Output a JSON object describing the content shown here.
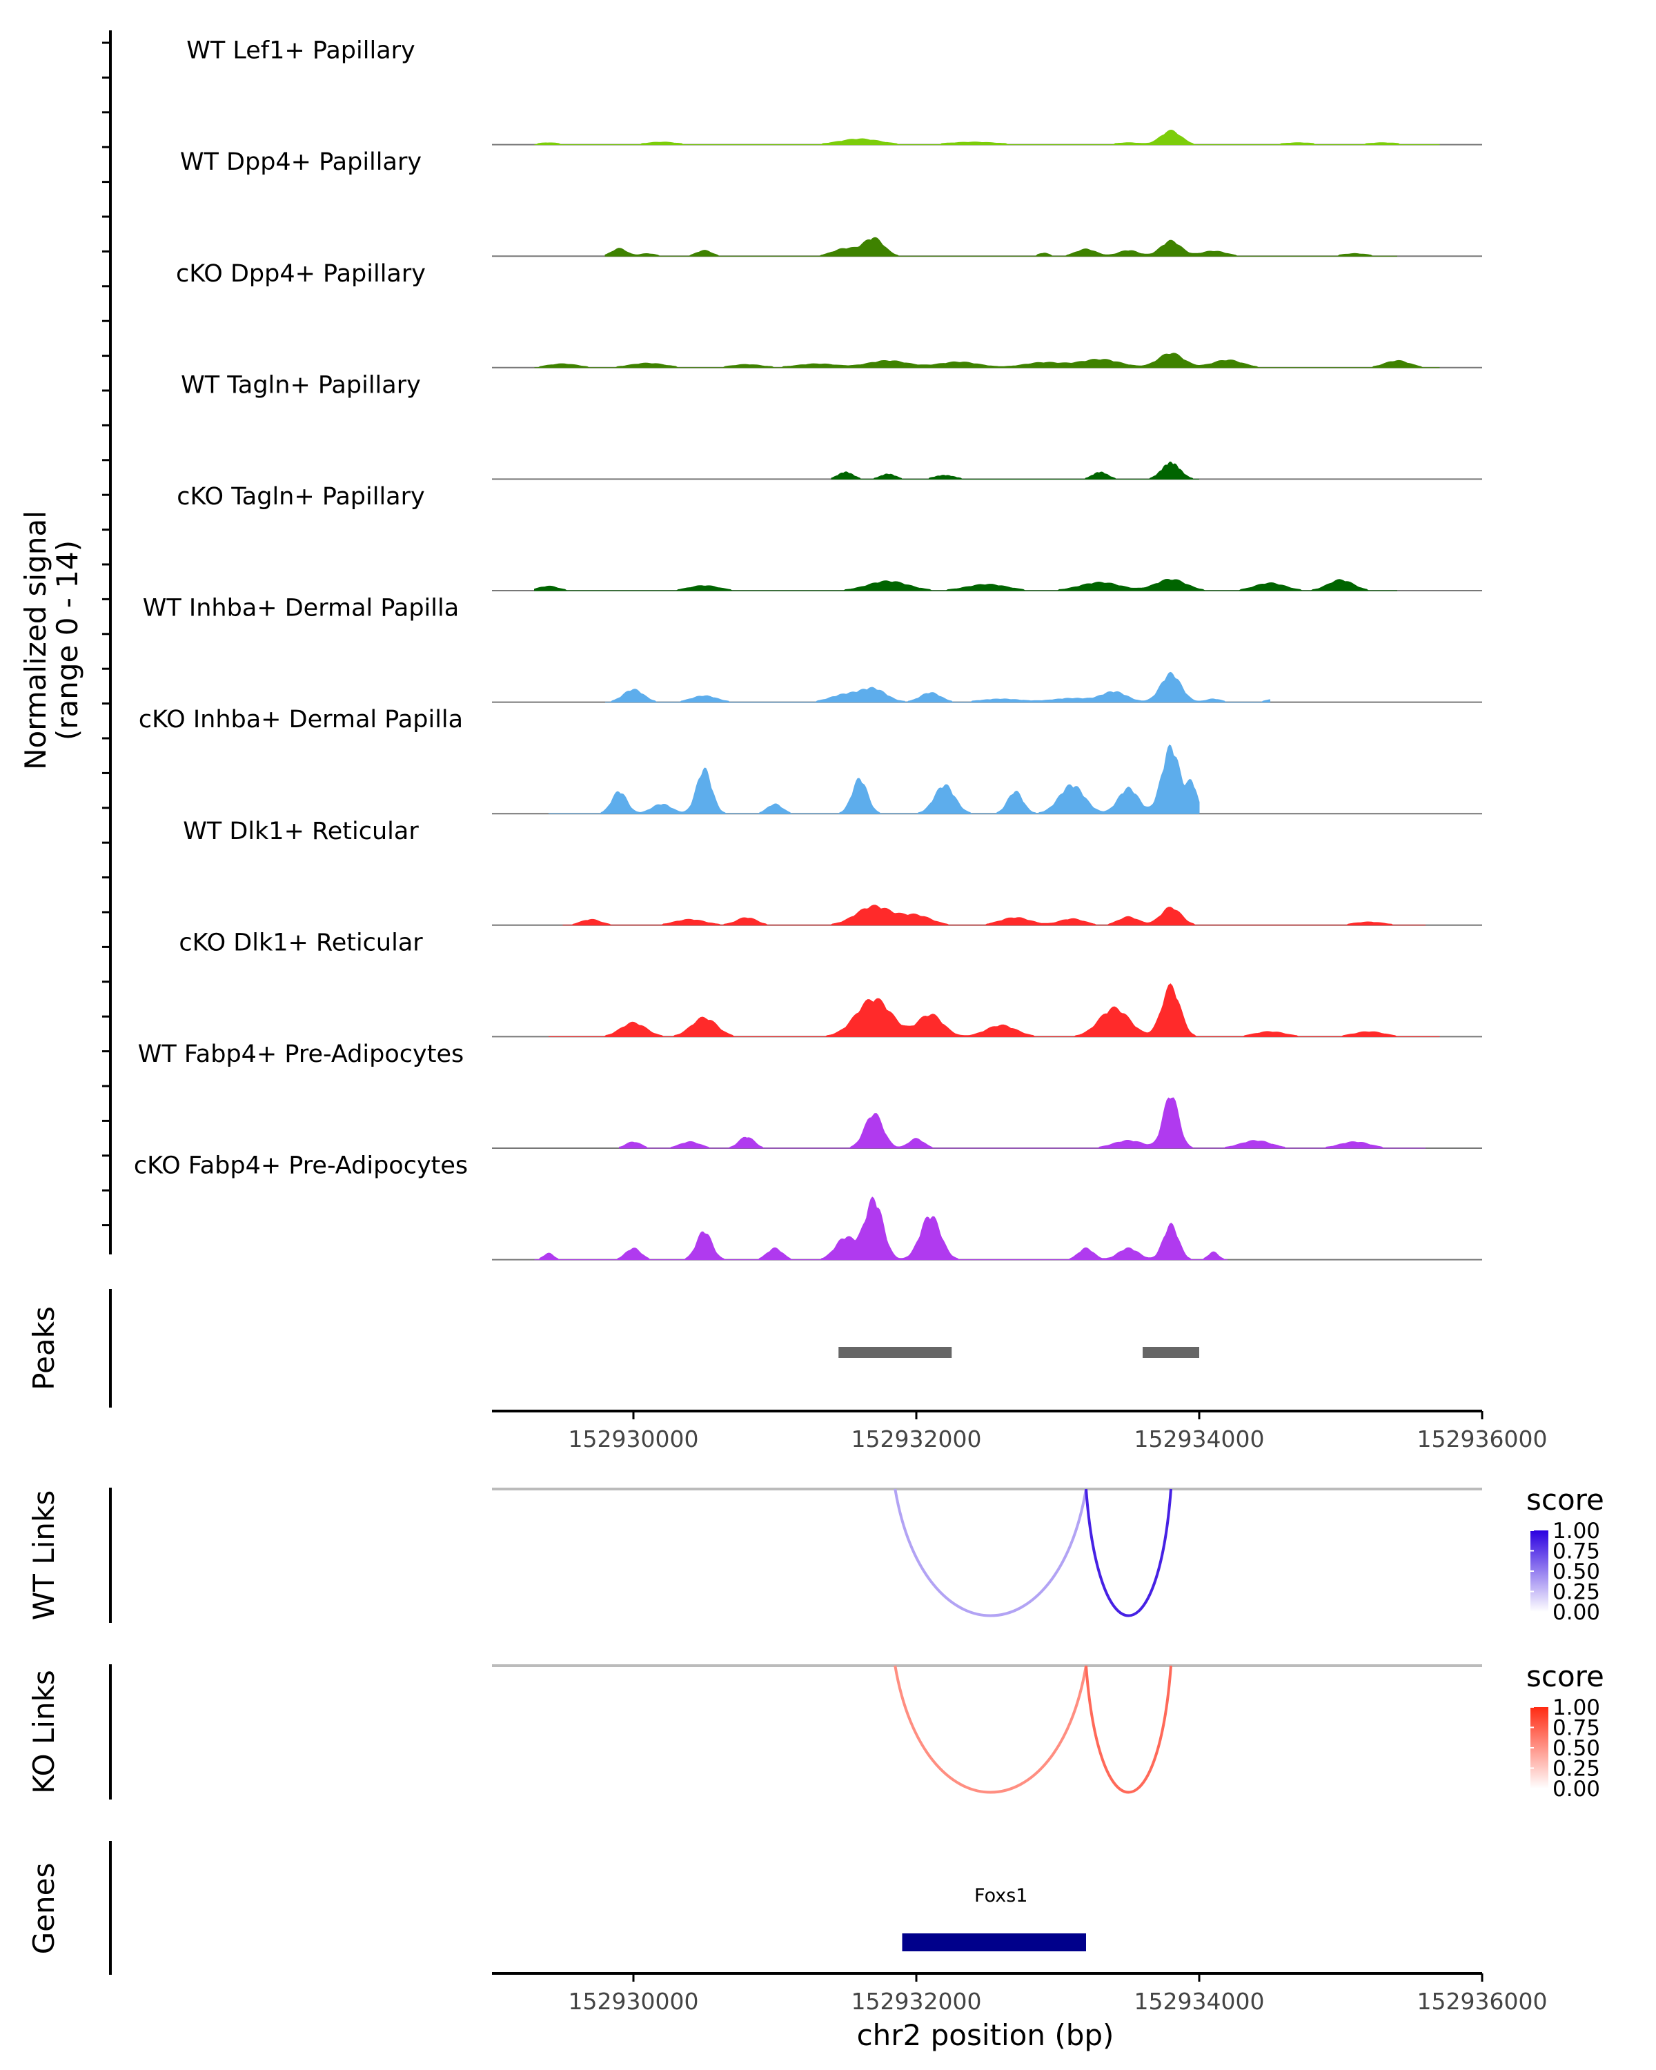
{
  "chart_data": {
    "type": "area",
    "chromosome": "chr2",
    "x_range": [
      152929000,
      152936000
    ],
    "y_axis_label_line1": "Normalized signal",
    "y_axis_label_line2": "(range 0 - 14)",
    "y_range": [
      0,
      14
    ],
    "x_ticks": [
      152930000,
      152932000,
      152934000,
      152936000
    ],
    "x_tick_labels": [
      "152930000",
      "152932000",
      "152934000",
      "152936000"
    ],
    "x_axis_title": "chr2 position (bp)",
    "tracks": [
      {
        "name": "WT Lef1+ Papillary",
        "color": "#7CCD0A",
        "region": [
          152929300,
          152935700
        ],
        "peaks": [
          [
            152929400,
            0.3,
            200
          ],
          [
            152930200,
            0.4,
            300
          ],
          [
            152931600,
            0.9,
            400
          ],
          [
            152932400,
            0.4,
            500
          ],
          [
            152933500,
            0.3,
            250
          ],
          [
            152933800,
            2.2,
            200
          ],
          [
            152934700,
            0.3,
            300
          ],
          [
            152935300,
            0.3,
            300
          ]
        ]
      },
      {
        "name": "WT Dpp4+ Papillary",
        "color": "#3E8200",
        "region": [
          152929800,
          152935400
        ],
        "peaks": [
          [
            152929900,
            1.2,
            150
          ],
          [
            152930100,
            0.4,
            150
          ],
          [
            152930500,
            0.9,
            150
          ],
          [
            152931500,
            1.2,
            250
          ],
          [
            152931700,
            2.8,
            200
          ],
          [
            152932900,
            0.5,
            100
          ],
          [
            152933200,
            1.1,
            200
          ],
          [
            152933500,
            0.9,
            200
          ],
          [
            152933800,
            2.4,
            200
          ],
          [
            152934100,
            0.8,
            250
          ],
          [
            152935100,
            0.4,
            250
          ]
        ]
      },
      {
        "name": "cKO Dpp4+ Papillary",
        "color": "#3E8200",
        "region": [
          152929300,
          152935700
        ],
        "peaks": [
          [
            152929500,
            0.6,
            300
          ],
          [
            152930100,
            0.7,
            350
          ],
          [
            152930800,
            0.5,
            300
          ],
          [
            152931300,
            0.6,
            400
          ],
          [
            152931800,
            1.1,
            400
          ],
          [
            152932300,
            0.9,
            400
          ],
          [
            152932900,
            0.8,
            400
          ],
          [
            152933300,
            1.3,
            400
          ],
          [
            152933800,
            2.3,
            250
          ],
          [
            152934200,
            1.2,
            300
          ],
          [
            152935400,
            1.1,
            250
          ]
        ]
      },
      {
        "name": "WT Tagln+ Papillary",
        "color": "#006400",
        "region": [
          152931400,
          152934000
        ],
        "peaks": [
          [
            152931500,
            1.1,
            150
          ],
          [
            152931800,
            0.8,
            150
          ],
          [
            152932200,
            0.6,
            200
          ],
          [
            152933300,
            1.1,
            150
          ],
          [
            152933800,
            2.6,
            180
          ]
        ]
      },
      {
        "name": "cKO Tagln+ Papillary",
        "color": "#006400",
        "region": [
          152929300,
          152935400
        ],
        "peaks": [
          [
            152929400,
            0.7,
            200
          ],
          [
            152930500,
            0.8,
            300
          ],
          [
            152931800,
            1.5,
            400
          ],
          [
            152932500,
            1.0,
            400
          ],
          [
            152933300,
            1.3,
            400
          ],
          [
            152933800,
            1.8,
            300
          ],
          [
            152934500,
            1.2,
            300
          ],
          [
            152935000,
            1.7,
            250
          ]
        ]
      },
      {
        "name": "WT Inhba+ Dermal Papilla",
        "color": "#5DADEC",
        "region": [
          152929800,
          152934500
        ],
        "peaks": [
          [
            152930000,
            2.0,
            200
          ],
          [
            152930500,
            1.0,
            250
          ],
          [
            152931500,
            1.2,
            300
          ],
          [
            152931700,
            2.0,
            250
          ],
          [
            152932100,
            1.5,
            200
          ],
          [
            152932600,
            0.5,
            400
          ],
          [
            152933100,
            0.6,
            400
          ],
          [
            152933400,
            1.6,
            250
          ],
          [
            152933800,
            4.5,
            200
          ],
          [
            152934100,
            0.5,
            150
          ],
          [
            152934500,
            0.4,
            100
          ]
        ]
      },
      {
        "name": "cKO Inhba+ Dermal Papilla",
        "color": "#5DADEC",
        "region": [
          152929400,
          152934000
        ],
        "peaks": [
          [
            152929900,
            3.5,
            150
          ],
          [
            152930200,
            1.5,
            200
          ],
          [
            152930500,
            7.0,
            150
          ],
          [
            152931000,
            1.5,
            150
          ],
          [
            152931600,
            5.5,
            150
          ],
          [
            152932200,
            4.5,
            200
          ],
          [
            152932700,
            3.5,
            150
          ],
          [
            152933100,
            4.5,
            250
          ],
          [
            152933500,
            4.0,
            200
          ],
          [
            152933800,
            10.5,
            180
          ],
          [
            152933950,
            4.5,
            100
          ]
        ]
      },
      {
        "name": "WT Dlk1+ Reticular",
        "color": "#FF2A2A",
        "region": [
          152929500,
          152935600
        ],
        "peaks": [
          [
            152929700,
            0.9,
            200
          ],
          [
            152930400,
            0.9,
            300
          ],
          [
            152930800,
            1.2,
            200
          ],
          [
            152931700,
            3.0,
            350
          ],
          [
            152932000,
            1.5,
            300
          ],
          [
            152932700,
            1.2,
            300
          ],
          [
            152933100,
            1.0,
            250
          ],
          [
            152933500,
            1.3,
            200
          ],
          [
            152933800,
            2.8,
            200
          ],
          [
            152935200,
            0.5,
            300
          ]
        ]
      },
      {
        "name": "cKO Dlk1+ Reticular",
        "color": "#FF2A2A",
        "region": [
          152929400,
          152935700
        ],
        "peaks": [
          [
            152930000,
            2.2,
            250
          ],
          [
            152930500,
            3.0,
            250
          ],
          [
            152931700,
            6.0,
            350
          ],
          [
            152932100,
            3.5,
            250
          ],
          [
            152932600,
            1.8,
            300
          ],
          [
            152933400,
            4.5,
            300
          ],
          [
            152933800,
            8.0,
            180
          ],
          [
            152934500,
            0.8,
            300
          ],
          [
            152935200,
            0.8,
            300
          ]
        ]
      },
      {
        "name": "WT Fabp4+ Pre-Adipocytes",
        "color": "#B03AEF",
        "region": [
          152929900,
          152935600
        ],
        "peaks": [
          [
            152930000,
            1.0,
            150
          ],
          [
            152930400,
            1.0,
            200
          ],
          [
            152930800,
            1.8,
            150
          ],
          [
            152931700,
            5.5,
            180
          ],
          [
            152932000,
            1.5,
            150
          ],
          [
            152933500,
            1.2,
            300
          ],
          [
            152933800,
            8.5,
            150
          ],
          [
            152934400,
            1.2,
            300
          ],
          [
            152935100,
            1.0,
            300
          ]
        ]
      },
      {
        "name": "cKO Fabp4+ Pre-Adipocytes",
        "color": "#B03AEF",
        "region": [
          152929300,
          152934200
        ],
        "peaks": [
          [
            152929400,
            1.0,
            100
          ],
          [
            152930000,
            1.8,
            150
          ],
          [
            152930500,
            4.5,
            150
          ],
          [
            152931000,
            1.8,
            150
          ],
          [
            152931500,
            3.5,
            200
          ],
          [
            152931700,
            9.5,
            180
          ],
          [
            152932100,
            7.0,
            200
          ],
          [
            152933200,
            1.8,
            150
          ],
          [
            152933500,
            1.8,
            200
          ],
          [
            152933800,
            5.5,
            150
          ],
          [
            152934100,
            1.2,
            100
          ]
        ]
      }
    ],
    "peaks_panel": {
      "label": "Peaks",
      "intervals": [
        [
          152931450,
          152932250
        ],
        [
          152933600,
          152934000
        ]
      ],
      "color": "#666666"
    },
    "links_panels": [
      {
        "label": "WT Links",
        "legend_title": "score",
        "legend_ticks": [
          "1.00",
          "0.75",
          "0.50",
          "0.25",
          "0.00"
        ],
        "low_color": "#FFFFFF",
        "high_color": "#2B00E0",
        "arcs": [
          {
            "start": 152931850,
            "end": 152933200,
            "score": 0.25
          },
          {
            "start": 152933200,
            "end": 152933800,
            "score": 0.85
          }
        ]
      },
      {
        "label": "KO Links",
        "legend_title": "score",
        "legend_ticks": [
          "1.00",
          "0.75",
          "0.50",
          "0.25",
          "0.00"
        ],
        "low_color": "#FFFFFF",
        "high_color": "#FF2A12",
        "arcs": [
          {
            "start": 152931850,
            "end": 152933200,
            "score": 0.45
          },
          {
            "start": 152933200,
            "end": 152933800,
            "score": 0.65
          }
        ]
      }
    ],
    "genes_panel": {
      "label": "Genes",
      "genes": [
        {
          "name": "Foxs1",
          "start": 152931900,
          "end": 152933200,
          "color": "#00008B"
        }
      ]
    }
  }
}
